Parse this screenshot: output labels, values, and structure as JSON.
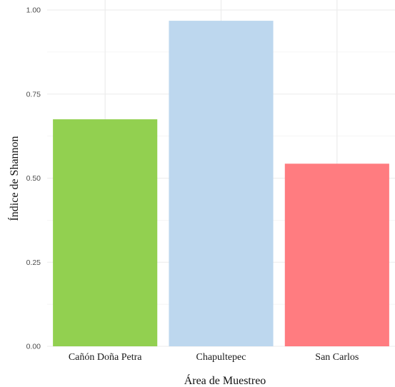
{
  "chart_data": {
    "type": "bar",
    "title": "",
    "xlabel": "Área de Muestreo",
    "ylabel": "Índice de Shannon",
    "categories": [
      "Cañón Doña Petra",
      "Chapultepec",
      "San Carlos"
    ],
    "values": [
      0.675,
      0.968,
      0.543
    ],
    "colors": [
      "#92d050",
      "#bdd7ee",
      "#ff7c80"
    ],
    "ylim": [
      0,
      1.0
    ],
    "yticks": [
      "0.00",
      "0.25",
      "0.50",
      "0.75",
      "1.00"
    ],
    "grid": true,
    "legend": "none"
  }
}
